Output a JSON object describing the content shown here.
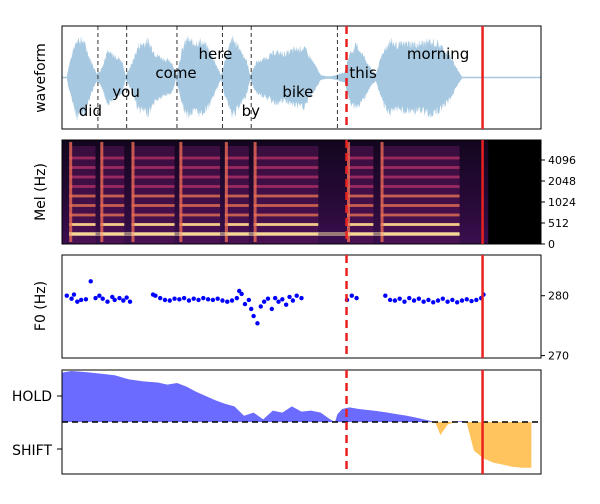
{
  "colors": {
    "waveform": "#a6c8e0",
    "f0_points": "#0000ff",
    "hold_fill": "#6b6bff",
    "shift_fill": "#ffc45e",
    "cursor_dashed": "#e8211f",
    "cursor_solid": "#e8211f",
    "word_boundary": "#333333"
  },
  "panels": {
    "waveform": {
      "ylabel": "waveform"
    },
    "mel": {
      "ylabel": "Mel (Hz)"
    },
    "f0": {
      "ylabel": "F0 (Hz)"
    },
    "vap": {
      "ylabel_top": "HOLD",
      "ylabel_bottom": "SHIFT"
    }
  },
  "chart_data": [
    {
      "type": "area",
      "name": "waveform",
      "ylabel": "waveform",
      "xlim": [
        0,
        10
      ],
      "words": [
        {
          "text": "did",
          "x": 0.35,
          "level": "low"
        },
        {
          "text": "you",
          "x": 1.05,
          "level": "mid"
        },
        {
          "text": "come",
          "x": 1.95,
          "level": "upper"
        },
        {
          "text": "here",
          "x": 2.85,
          "level": "top"
        },
        {
          "text": "by",
          "x": 3.75,
          "level": "low"
        },
        {
          "text": "bike",
          "x": 4.6,
          "level": "mid"
        },
        {
          "text": "this",
          "x": 6.0,
          "level": "upper"
        },
        {
          "text": "morning",
          "x": 7.2,
          "level": "top"
        }
      ],
      "word_boundaries": [
        0.75,
        1.35,
        2.4,
        3.35,
        3.95,
        5.75
      ],
      "envelope": [
        [
          0.1,
          0.03
        ],
        [
          0.15,
          0.3
        ],
        [
          0.3,
          0.9
        ],
        [
          0.45,
          0.85
        ],
        [
          0.6,
          0.4
        ],
        [
          0.72,
          0.1
        ],
        [
          0.8,
          0.15
        ],
        [
          0.95,
          0.6
        ],
        [
          1.1,
          0.5
        ],
        [
          1.25,
          0.4
        ],
        [
          1.33,
          0.05
        ],
        [
          1.45,
          0.3
        ],
        [
          1.6,
          0.75
        ],
        [
          1.8,
          0.85
        ],
        [
          1.95,
          0.55
        ],
        [
          2.1,
          0.45
        ],
        [
          2.3,
          0.35
        ],
        [
          2.38,
          0.05
        ],
        [
          2.5,
          0.6
        ],
        [
          2.6,
          0.9
        ],
        [
          2.75,
          0.8
        ],
        [
          2.9,
          0.85
        ],
        [
          3.05,
          0.7
        ],
        [
          3.2,
          0.35
        ],
        [
          3.32,
          0.05
        ],
        [
          3.4,
          0.4
        ],
        [
          3.55,
          0.9
        ],
        [
          3.7,
          0.7
        ],
        [
          3.85,
          0.4
        ],
        [
          3.93,
          0.05
        ],
        [
          4.05,
          0.35
        ],
        [
          4.25,
          0.45
        ],
        [
          4.45,
          0.6
        ],
        [
          4.65,
          0.55
        ],
        [
          4.85,
          0.65
        ],
        [
          5.05,
          0.7
        ],
        [
          5.25,
          0.35
        ],
        [
          5.4,
          0.06
        ],
        [
          5.5,
          0.03
        ],
        [
          5.6,
          0.03
        ],
        [
          5.7,
          0.05
        ],
        [
          5.9,
          0.12
        ],
        [
          6.0,
          0.55
        ],
        [
          6.15,
          0.75
        ],
        [
          6.3,
          0.5
        ],
        [
          6.45,
          0.2
        ],
        [
          6.55,
          0.08
        ],
        [
          6.7,
          0.6
        ],
        [
          6.85,
          0.85
        ],
        [
          7.0,
          0.75
        ],
        [
          7.2,
          0.8
        ],
        [
          7.45,
          0.78
        ],
        [
          7.7,
          0.85
        ],
        [
          7.9,
          0.75
        ],
        [
          8.1,
          0.5
        ],
        [
          8.25,
          0.2
        ],
        [
          8.35,
          0.02
        ]
      ]
    },
    {
      "type": "heatmap",
      "name": "mel_spectrogram",
      "ylabel": "Mel (Hz)",
      "yticks": [
        0,
        512,
        1024,
        2048,
        4096
      ],
      "xlim": [
        0,
        10
      ]
    },
    {
      "type": "scatter",
      "name": "f0",
      "ylabel": "F0 (Hz)",
      "yticks": [
        270,
        280
      ],
      "ylim": [
        269.6,
        286.8
      ],
      "xlim": [
        0,
        10
      ],
      "points": [
        [
          0.1,
          280.0
        ],
        [
          0.2,
          279.5
        ],
        [
          0.25,
          280.2
        ],
        [
          0.32,
          279.0
        ],
        [
          0.4,
          279.3
        ],
        [
          0.5,
          279.4
        ],
        [
          0.6,
          282.4
        ],
        [
          0.7,
          279.6
        ],
        [
          0.78,
          280.0
        ],
        [
          0.85,
          279.5
        ],
        [
          0.95,
          279.0
        ],
        [
          1.05,
          279.8
        ],
        [
          1.1,
          279.3
        ],
        [
          1.2,
          279.6
        ],
        [
          1.28,
          279.2
        ],
        [
          1.35,
          279.7
        ],
        [
          1.42,
          279.0
        ],
        [
          1.9,
          280.2
        ],
        [
          1.95,
          280.0
        ],
        [
          2.05,
          279.6
        ],
        [
          2.15,
          279.3
        ],
        [
          2.25,
          279.2
        ],
        [
          2.35,
          279.5
        ],
        [
          2.45,
          279.4
        ],
        [
          2.55,
          279.6
        ],
        [
          2.65,
          279.2
        ],
        [
          2.75,
          279.5
        ],
        [
          2.85,
          279.3
        ],
        [
          2.95,
          279.6
        ],
        [
          3.05,
          279.4
        ],
        [
          3.15,
          279.3
        ],
        [
          3.25,
          279.5
        ],
        [
          3.35,
          279.2
        ],
        [
          3.45,
          279.0
        ],
        [
          3.55,
          279.2
        ],
        [
          3.65,
          279.6
        ],
        [
          3.7,
          280.8
        ],
        [
          3.75,
          280.3
        ],
        [
          3.82,
          278.6
        ],
        [
          3.9,
          279.3
        ],
        [
          3.95,
          277.8
        ],
        [
          4.0,
          276.6
        ],
        [
          4.08,
          275.4
        ],
        [
          4.15,
          278.2
        ],
        [
          4.22,
          279.0
        ],
        [
          4.3,
          279.5
        ],
        [
          4.38,
          277.8
        ],
        [
          4.45,
          279.6
        ],
        [
          4.52,
          279.0
        ],
        [
          4.6,
          279.4
        ],
        [
          4.68,
          278.5
        ],
        [
          4.75,
          279.8
        ],
        [
          4.82,
          279.2
        ],
        [
          4.9,
          280.0
        ],
        [
          5.0,
          279.6
        ],
        [
          5.95,
          279.3
        ],
        [
          6.05,
          280.0
        ],
        [
          6.15,
          279.6
        ],
        [
          6.75,
          280.0
        ],
        [
          6.85,
          279.3
        ],
        [
          6.95,
          279.2
        ],
        [
          7.05,
          279.5
        ],
        [
          7.15,
          279.0
        ],
        [
          7.25,
          279.6
        ],
        [
          7.35,
          279.2
        ],
        [
          7.45,
          279.5
        ],
        [
          7.55,
          279.0
        ],
        [
          7.65,
          279.3
        ],
        [
          7.75,
          278.9
        ],
        [
          7.85,
          279.2
        ],
        [
          7.95,
          279.5
        ],
        [
          8.05,
          279.0
        ],
        [
          8.15,
          279.3
        ],
        [
          8.25,
          278.9
        ],
        [
          8.35,
          279.2
        ],
        [
          8.45,
          279.4
        ],
        [
          8.55,
          279.1
        ],
        [
          8.65,
          279.3
        ],
        [
          8.75,
          279.6
        ],
        [
          8.8,
          280.2
        ]
      ]
    },
    {
      "type": "area",
      "name": "vap_probability",
      "ylabels": [
        "HOLD",
        "SHIFT"
      ],
      "ylim": [
        -1,
        1
      ],
      "baseline": 0,
      "xlim": [
        0,
        10
      ],
      "series": [
        [
          0.0,
          0.95
        ],
        [
          0.2,
          0.98
        ],
        [
          0.5,
          0.96
        ],
        [
          0.8,
          0.93
        ],
        [
          1.1,
          0.9
        ],
        [
          1.4,
          0.82
        ],
        [
          1.7,
          0.78
        ],
        [
          2.0,
          0.76
        ],
        [
          2.2,
          0.72
        ],
        [
          2.4,
          0.75
        ],
        [
          2.6,
          0.68
        ],
        [
          2.8,
          0.58
        ],
        [
          3.0,
          0.5
        ],
        [
          3.2,
          0.42
        ],
        [
          3.4,
          0.35
        ],
        [
          3.6,
          0.3
        ],
        [
          3.8,
          0.12
        ],
        [
          4.0,
          0.18
        ],
        [
          4.2,
          0.05
        ],
        [
          4.4,
          0.22
        ],
        [
          4.6,
          0.18
        ],
        [
          4.8,
          0.3
        ],
        [
          5.0,
          0.2
        ],
        [
          5.2,
          0.22
        ],
        [
          5.4,
          0.18
        ],
        [
          5.6,
          0.05
        ],
        [
          5.7,
          0.0
        ],
        [
          5.75,
          0.15
        ],
        [
          5.85,
          0.25
        ],
        [
          6.0,
          0.28
        ],
        [
          6.2,
          0.25
        ],
        [
          6.5,
          0.22
        ],
        [
          6.8,
          0.18
        ],
        [
          7.0,
          0.15
        ],
        [
          7.2,
          0.12
        ],
        [
          7.4,
          0.08
        ],
        [
          7.6,
          0.04
        ],
        [
          7.8,
          -0.02
        ],
        [
          7.9,
          -0.25
        ],
        [
          8.05,
          -0.05
        ],
        [
          8.2,
          0.0
        ],
        [
          8.35,
          0.02
        ],
        [
          8.45,
          -0.02
        ],
        [
          8.6,
          -0.55
        ],
        [
          8.8,
          -0.7
        ],
        [
          9.0,
          -0.78
        ],
        [
          9.2,
          -0.82
        ],
        [
          9.4,
          -0.86
        ],
        [
          9.6,
          -0.88
        ],
        [
          9.8,
          -0.88
        ]
      ]
    }
  ],
  "cursors": {
    "dashed_x": 5.94,
    "solid_x": 8.78
  }
}
